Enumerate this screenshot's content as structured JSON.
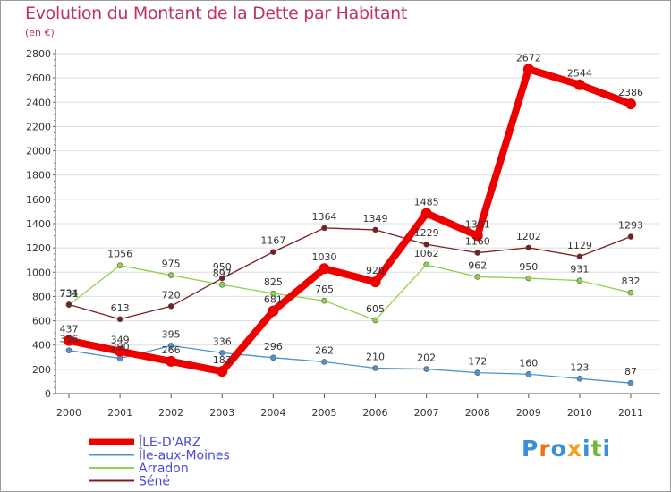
{
  "title": "Evolution du Montant de la Dette par Habitant",
  "subtitle": "(en €)",
  "logo": {
    "letters": [
      "P",
      "r",
      "o",
      "x",
      "i",
      "t",
      "i"
    ],
    "colors": [
      "#3b8fd6",
      "#e8741c",
      "#3b8fd6",
      "#f0a01c",
      "#3b8fd6",
      "#6cb83a",
      "#3b8fd6"
    ]
  },
  "chart_data": {
    "type": "line",
    "title": "Evolution du Montant de la Dette par Habitant",
    "subtitle": "(en €)",
    "categories": [
      "2000",
      "2001",
      "2002",
      "2003",
      "2004",
      "2005",
      "2006",
      "2007",
      "2008",
      "2009",
      "2010",
      "2011"
    ],
    "ylim": [
      0,
      2800
    ],
    "yticks": [
      "0",
      "200",
      "400",
      "600",
      "800",
      "1000",
      "1200",
      "1400",
      "1600",
      "1800",
      "2000",
      "2200",
      "2400",
      "2600",
      "2800"
    ],
    "grid": "horizontal",
    "legend_position": "bottom-left",
    "series": [
      {
        "name": "Île-aux-Moines",
        "color": "#4f94c9",
        "values": [
          356,
          290,
          395,
          336,
          296,
          262,
          210,
          202,
          172,
          160,
          123,
          87
        ],
        "labels": [
          "356",
          "290",
          "395",
          "336",
          "296",
          "262",
          "210",
          "202",
          "172",
          "160",
          "123",
          "87"
        ]
      },
      {
        "name": "Arradon",
        "color": "#8cd24a",
        "values": [
          731,
          1056,
          975,
          897,
          825,
          765,
          605,
          1062,
          962,
          950,
          931,
          832
        ],
        "labels": [
          "731",
          "1056",
          "975",
          "897",
          "825",
          "765",
          "605",
          "1062",
          "962",
          "950",
          "931",
          "832"
        ]
      },
      {
        "name": "Séné",
        "color": "#7a2020",
        "values": [
          734,
          613,
          720,
          950,
          1167,
          1364,
          1349,
          1229,
          1160,
          1202,
          1129,
          1293
        ],
        "labels": [
          "734",
          "613",
          "720",
          "950",
          "1167",
          "1364",
          "1349",
          "1229",
          "1160",
          "1202",
          "1129",
          "1293"
        ]
      },
      {
        "name": "ÎLE-D'ARZ",
        "color": "#ee0000",
        "values": [
          437,
          349,
          266,
          183,
          681,
          1030,
          920,
          1485,
          1301,
          2672,
          2544,
          2386
        ],
        "labels": [
          "437",
          "349",
          "266",
          "183",
          "681",
          "1030",
          "920",
          "1485",
          "1301",
          "2672",
          "2544",
          "2386"
        ]
      }
    ],
    "legend": [
      "ÎLE-D'ARZ",
      "Île-aux-Moines",
      "Arradon",
      "Séné"
    ]
  }
}
